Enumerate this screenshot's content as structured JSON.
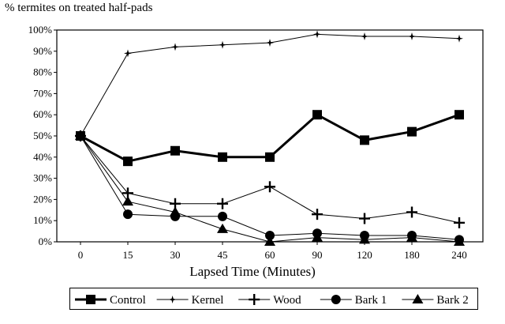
{
  "chart_data": {
    "type": "line",
    "ylabel": "% termites on treated half-pads",
    "xlabel": "Lapsed Time (Minutes)",
    "categories": [
      "0",
      "15",
      "30",
      "45",
      "60",
      "90",
      "120",
      "180",
      "240"
    ],
    "yticks": [
      "0%",
      "10%",
      "20%",
      "30%",
      "40%",
      "50%",
      "60%",
      "70%",
      "80%",
      "90%",
      "100%"
    ],
    "ylim": [
      0,
      100
    ],
    "grid": false,
    "legend_position": "bottom",
    "series": [
      {
        "name": "Control",
        "marker": "square",
        "stroke": 3,
        "values": [
          50,
          38,
          43,
          40,
          40,
          60,
          48,
          52,
          60
        ]
      },
      {
        "name": "Kernel",
        "marker": "star",
        "stroke": 1,
        "values": [
          50,
          89,
          92,
          93,
          94,
          98,
          97,
          97,
          96
        ]
      },
      {
        "name": "Wood",
        "marker": "plus",
        "stroke": 1,
        "values": [
          50,
          23,
          18,
          18,
          26,
          13,
          11,
          14,
          9
        ]
      },
      {
        "name": "Bark 1",
        "marker": "circle",
        "stroke": 1,
        "values": [
          50,
          13,
          12,
          12,
          3,
          4,
          3,
          3,
          1
        ]
      },
      {
        "name": "Bark 2",
        "marker": "triangle",
        "stroke": 1,
        "values": [
          50,
          19,
          14,
          6,
          0,
          2,
          1,
          2,
          0
        ]
      }
    ]
  }
}
